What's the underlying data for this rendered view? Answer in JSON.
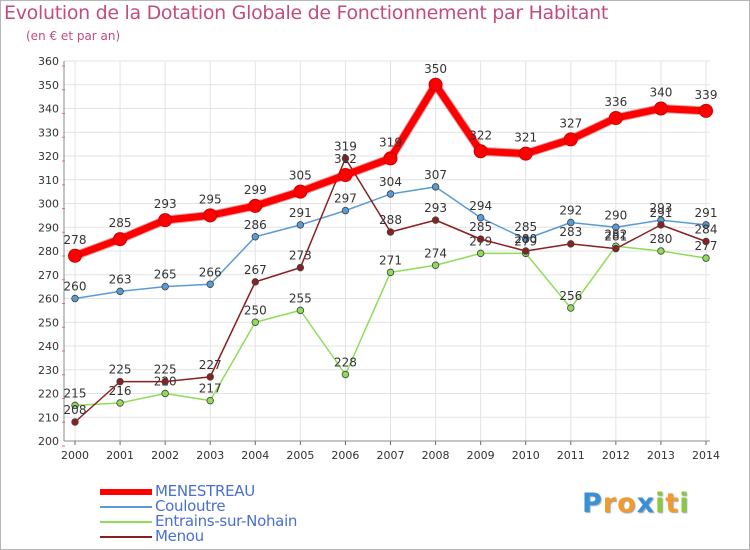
{
  "chart_data": {
    "type": "line",
    "title": "Evolution de la Dotation Globale de Fonctionnement par Habitant",
    "subtitle": "(en € et par an)",
    "x": [
      "2000",
      "2001",
      "2002",
      "2003",
      "2004",
      "2005",
      "2006",
      "2007",
      "2008",
      "2009",
      "2010",
      "2011",
      "2012",
      "2013",
      "2014"
    ],
    "ylim": [
      200,
      360
    ],
    "yticks": [
      200,
      210,
      220,
      230,
      240,
      250,
      260,
      270,
      280,
      290,
      300,
      310,
      320,
      330,
      340,
      350,
      360
    ],
    "grid": true,
    "legend_position": "bottom-left",
    "series": [
      {
        "name": "MENESTREAU",
        "color": "#ff0000",
        "values": [
          278,
          285,
          293,
          295,
          299,
          305,
          312,
          319,
          350,
          322,
          321,
          327,
          336,
          340,
          339
        ],
        "labels": [
          "278",
          "285",
          "293",
          "295",
          "299",
          "305",
          "312",
          "319",
          "350",
          "322",
          "321",
          "327",
          "336",
          "340",
          "339"
        ]
      },
      {
        "name": "Couloutre",
        "color": "#5b9bd5",
        "values": [
          260,
          263,
          265,
          266,
          286,
          291,
          297,
          304,
          307,
          294,
          285,
          292,
          290,
          293,
          291
        ],
        "labels": [
          "260",
          "263",
          "265",
          "266",
          "286",
          "291",
          "297",
          "304",
          "307",
          "294",
          "285",
          "292",
          "290",
          "293",
          "291"
        ]
      },
      {
        "name": "Entrains-sur-Nohain",
        "color": "#8fdc5a",
        "values": [
          215,
          216,
          220,
          217,
          250,
          255,
          228,
          271,
          274,
          279,
          279,
          256,
          282,
          280,
          277
        ],
        "labels": [
          "215",
          "216",
          "220",
          "217",
          "250",
          "255",
          "228",
          "271",
          "274",
          "279",
          "279",
          "256",
          "282",
          "280",
          "277"
        ]
      },
      {
        "name": "Menou",
        "color": "#8b2020",
        "values": [
          208,
          225,
          225,
          227,
          267,
          273,
          319,
          288,
          293,
          285,
          280,
          283,
          281,
          291,
          284
        ],
        "labels": [
          "208",
          "225",
          "225",
          "227",
          "267",
          "273",
          "319",
          "288",
          "293",
          "285",
          "280",
          "283",
          "281",
          "291",
          "284"
        ]
      }
    ]
  },
  "brand": {
    "letters": [
      "P",
      "r",
      "o",
      "x",
      "i",
      "t",
      "i"
    ],
    "colors": [
      "#3a8fd6",
      "#f29a2e",
      "#f29a2e",
      "#3a8fd6",
      "#8dc63f",
      "#f29a2e",
      "#8dc63f"
    ]
  }
}
